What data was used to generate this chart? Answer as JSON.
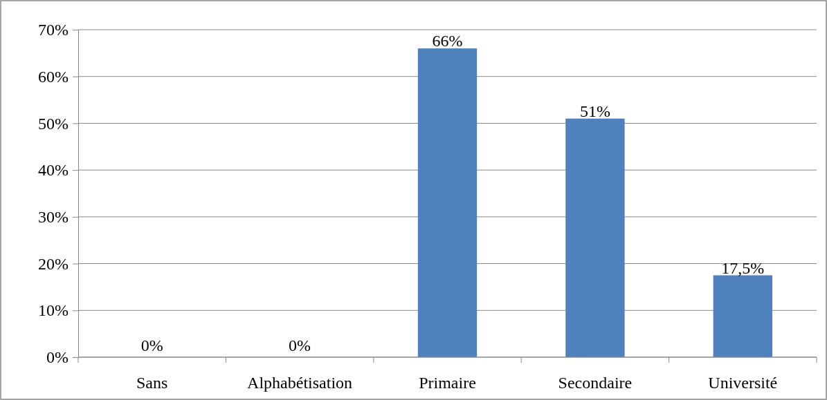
{
  "chart_data": {
    "type": "bar",
    "categories": [
      "Sans",
      "Alphabétisation",
      "Primaire",
      "Secondaire",
      "Université"
    ],
    "values": [
      0,
      0,
      66,
      51,
      17.5
    ],
    "value_labels": [
      "0%",
      "0%",
      "66%",
      "51%",
      "17,5%"
    ],
    "color": "#4f81bd",
    "ylim": [
      0,
      70
    ],
    "yticks": [
      {
        "value": 0,
        "label": "0%"
      },
      {
        "value": 10,
        "label": "10%"
      },
      {
        "value": 20,
        "label": "20%"
      },
      {
        "value": 30,
        "label": "30%"
      },
      {
        "value": 40,
        "label": "40%"
      },
      {
        "value": 50,
        "label": "50%"
      },
      {
        "value": 60,
        "label": "60%"
      },
      {
        "value": 70,
        "label": "70%"
      }
    ],
    "grid": "y"
  }
}
